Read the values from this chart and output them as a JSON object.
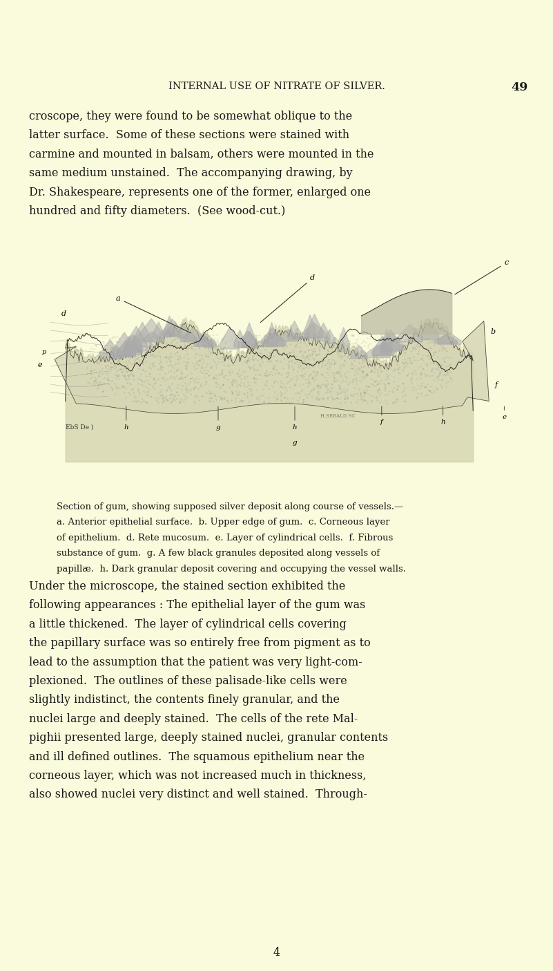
{
  "bg_color": "#FAFADC",
  "text_color": "#1a1a1a",
  "header_text": "INTERNAL USE OF NITRATE OF SILVER.",
  "page_number": "49",
  "header_fontsize": 10.5,
  "body_fontsize": 11.5,
  "caption_fontsize": 9.5,
  "figsize": [
    8.01,
    14.05
  ],
  "dpi": 100,
  "paragraph1": "croscope, they were found to be somewhat oblique to the\nlatter surface.  Some of these sections were stained with\ncarmine and mounted in balsam, others were mounted in the\nsame medium unstained.  The accompanying drawing, by\nDr. Shakespeare, represents one of the former, enlarged one\nhundred and fifty diameters.  (See wood-cut.)",
  "caption_title": "Section of gum, showing supposed silver deposit along course of vessels.—",
  "caption_body": "a. Anterior epithelial surface.  b. Upper edge of gum.  c. Corneous layer\nof epithelium.  d. Rete mucosum.  e. Layer of cylindrical cells.  f. Fibrous\nsubstance of gum.  g. A few black granules deposited along vessels of\npapillæ.  h. Dark granular deposit covering and occupying the vessel walls.",
  "paragraph2": "Under the microscope, the stained section exhibited the\nfollowing appearances : The epithelial layer of the gum was\na little thickened.  The layer of cylindrical cells covering\nthe papillary surface was so entirely free from pigment as to\nlead to the assumption that the patient was very light-com-\nplexioned.  The outlines of these palisade-like cells were\nslightly indistinct, the contents finely granular, and the\nnuclei large and deeply stained.  The cells of the rete Mal-\npighii presented large, deeply stained nuclei, granular contents\nand ill defined outlines.  The squamous epithelium near the\ncorneous layer, which was not increased much in thickness,\nalso showed nuclei very distinct and well stained.  Through-",
  "footer_number": "4"
}
